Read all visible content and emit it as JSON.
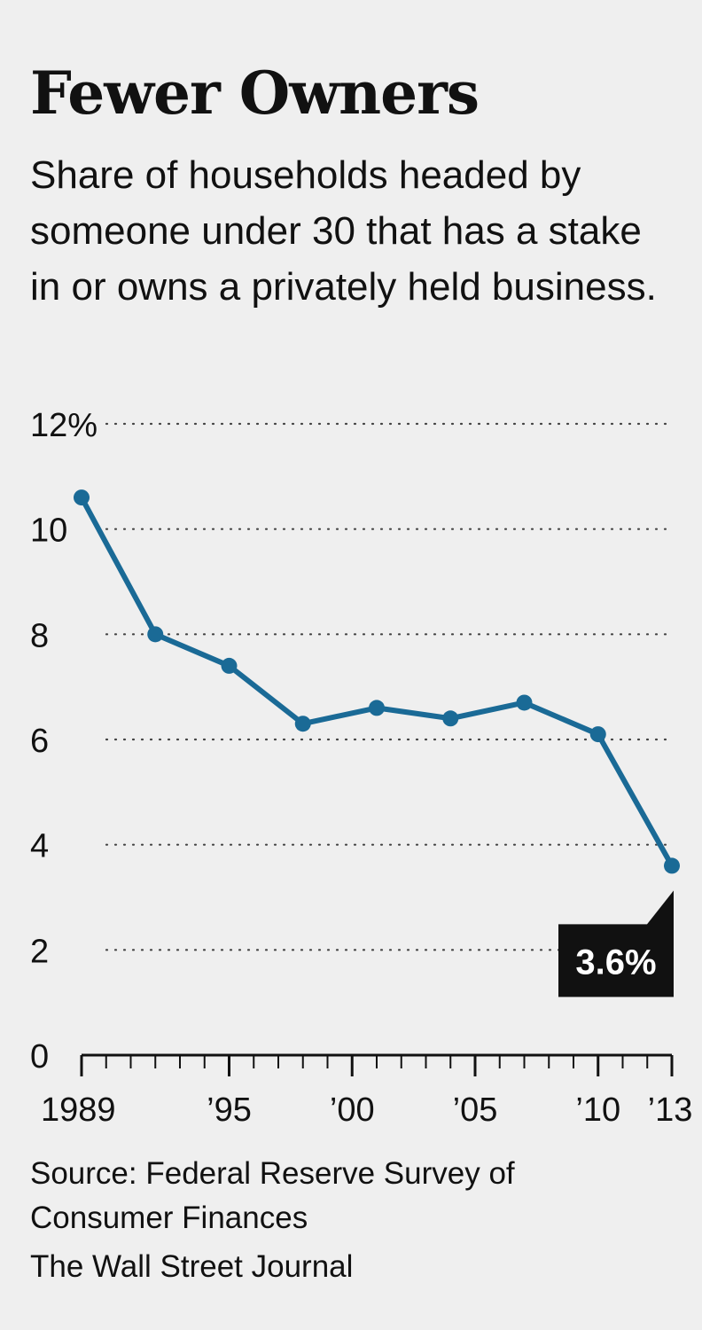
{
  "chart_data": {
    "type": "line",
    "title": "Fewer Owners",
    "subtitle": "Share of households headed by someone under 30 that has a stake in or owns a privately held business.",
    "xlabel": "",
    "ylabel": "",
    "x": [
      1989,
      1992,
      1995,
      1998,
      2001,
      2004,
      2007,
      2010,
      2013
    ],
    "series": [
      {
        "values": [
          10.6,
          8.0,
          7.4,
          6.3,
          6.6,
          6.4,
          6.7,
          6.1,
          3.6
        ]
      }
    ],
    "ylim": [
      0,
      12
    ],
    "xlim": [
      1989,
      2013
    ],
    "y_ticks": [
      0,
      2,
      4,
      6,
      8,
      10,
      12
    ],
    "y_tick_labels": [
      "0",
      "2",
      "4",
      "6",
      "8",
      "10",
      "12%"
    ],
    "x_ticks": [
      1989,
      1995,
      2000,
      2005,
      2010,
      2013
    ],
    "x_tick_labels": [
      "1989",
      "’95",
      "’00",
      "’05",
      "’10",
      "’13"
    ],
    "annotation": {
      "x": 2013,
      "y": 3.6,
      "text": "3.6%"
    },
    "grid": "horizontal dotted",
    "line_color": "#1a6a96",
    "source": "Source: Federal Reserve Survey of Consumer Finances",
    "credit": "The Wall Street Journal"
  }
}
